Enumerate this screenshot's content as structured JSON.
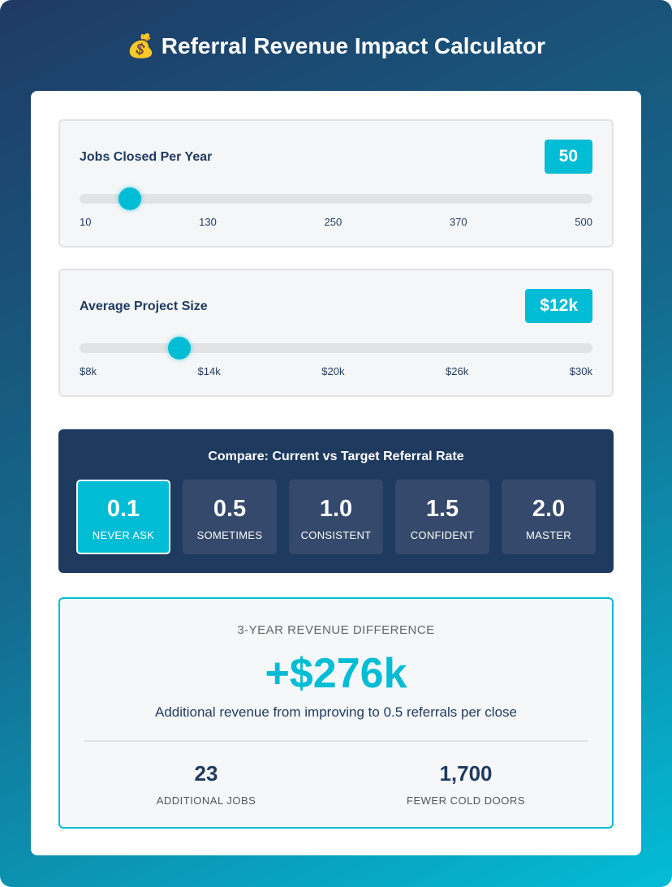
{
  "header": {
    "title": "💰 Referral Revenue Impact Calculator"
  },
  "sliders": [
    {
      "label": "Jobs Closed Per Year",
      "value": "50",
      "ticks": [
        "10",
        "130",
        "250",
        "370",
        "500"
      ]
    },
    {
      "label": "Average Project Size",
      "value": "$12k",
      "ticks": [
        "$8k",
        "$14k",
        "$20k",
        "$26k",
        "$30k"
      ]
    }
  ],
  "compare": {
    "title": "Compare: Current vs Target Referral Rate",
    "options": [
      {
        "value": "0.1",
        "label": "NEVER ASK"
      },
      {
        "value": "0.5",
        "label": "SOMETIMES"
      },
      {
        "value": "1.0",
        "label": "CONSISTENT"
      },
      {
        "value": "1.5",
        "label": "CONFIDENT"
      },
      {
        "value": "2.0",
        "label": "MASTER"
      }
    ]
  },
  "result": {
    "heading": "3-YEAR REVENUE DIFFERENCE",
    "amount": "+$276k",
    "description": "Additional revenue from improving to 0.5 referrals per close",
    "stats": [
      {
        "value": "23",
        "label": "ADDITIONAL JOBS"
      },
      {
        "value": "1,700",
        "label": "FEWER COLD DOORS"
      }
    ]
  }
}
